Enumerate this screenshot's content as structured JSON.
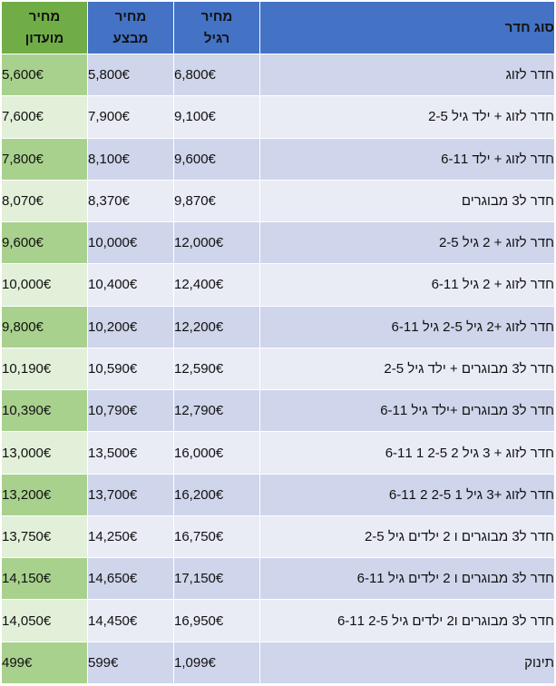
{
  "headers": {
    "room_type": "סוג חדר",
    "regular": [
      "מחיר",
      "רגיל"
    ],
    "sale": [
      "מחיר",
      "מבצע"
    ],
    "club": [
      "מחיר",
      "מועדון"
    ]
  },
  "rows": [
    {
      "room": "חדר לזוג",
      "regular": "6,800€",
      "sale": "5,800€",
      "club": "5,600€"
    },
    {
      "room": "חדר לזוג + ילד גיל 2-5",
      "regular": "9,100€",
      "sale": "7,900€",
      "club": "7,600€"
    },
    {
      "room": "חדר לזוג + ילד 6-11",
      "regular": "9,600€",
      "sale": "8,100€",
      "club": "7,800€"
    },
    {
      "room": "חדר ל3 מבוגרים",
      "regular": "9,870€",
      "sale": "8,370€",
      "club": "8,070€"
    },
    {
      "room": "חדר לזוג + 2 גיל 2-5",
      "regular": "12,000€",
      "sale": "10,000€",
      "club": "9,600€"
    },
    {
      "room": "חדר לזוג + 2 גיל 6-11",
      "regular": "12,400€",
      "sale": "10,400€",
      "club": "10,000€"
    },
    {
      "room": "חדר לזוג +2 גיל 2-5 גיל 6-11",
      "regular": "12,200€",
      "sale": "10,200€",
      "club": "9,800€"
    },
    {
      "room": "חדר ל3 מבוגרים + ילד גיל 2-5",
      "regular": "12,590€",
      "sale": "10,590€",
      "club": "10,190€"
    },
    {
      "room": "חדר ל3 מבוגרים +ילד גיל 6-11",
      "regular": "12,790€",
      "sale": "10,790€",
      "club": "10,390€"
    },
    {
      "room": "חדר לזוג + 3 גיל 2 2-5 1 6-11",
      "regular": "16,000€",
      "sale": "13,500€",
      "club": "13,000€"
    },
    {
      "room": "חדר לזוג +3 גיל 1 2-5 2 6-11",
      "regular": "16,200€",
      "sale": "13,700€",
      "club": "13,200€"
    },
    {
      "room": "חדר ל3 מבוגרים ו 2 ילדים גיל 2-5",
      "regular": "16,750€",
      "sale": "14,250€",
      "club": "13,750€"
    },
    {
      "room": "חדר ל3 מבוגרים ו 2 ילדים גיל 6-11",
      "regular": "17,150€",
      "sale": "14,650€",
      "club": "14,150€"
    },
    {
      "room": "חדר ל3 מבוגרים ו2 ילדים גיל 2-5 6-11",
      "regular": "16,950€",
      "sale": "14,450€",
      "club": "14,050€"
    },
    {
      "room": "תינוק",
      "regular": "1,099€",
      "sale": "599€",
      "club": "499€"
    }
  ]
}
